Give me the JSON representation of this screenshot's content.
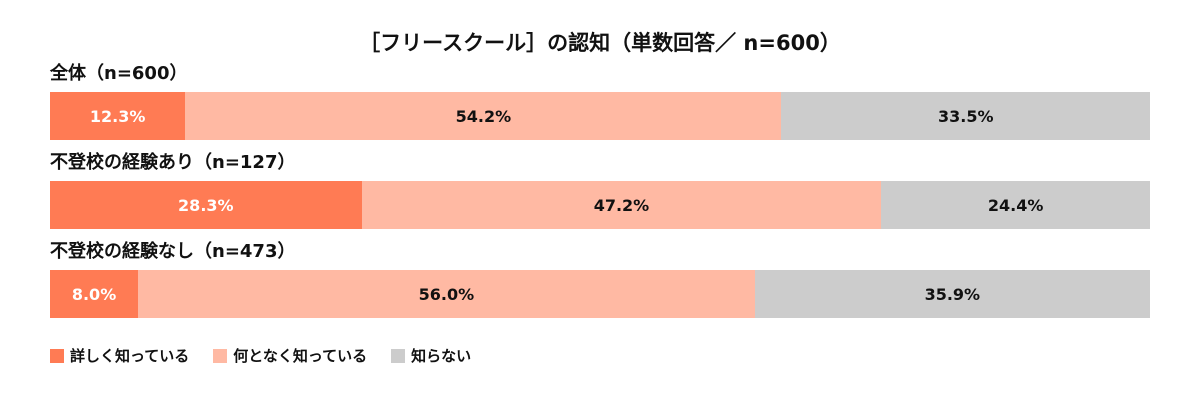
{
  "chart_data": {
    "type": "bar",
    "orientation": "horizontal",
    "stacked": true,
    "normalized": true,
    "title": "［フリースクール］の認知（単数回答／ n=600）",
    "categories": [
      "全体（n=600）",
      "不登校の経験あり（n=127）",
      "不登校の経験なし（n=473）"
    ],
    "series": [
      {
        "name": "詳しく知っている",
        "color": "#ff7b54",
        "values": [
          12.3,
          28.3,
          8.0
        ],
        "labels": [
          "12.3%",
          "28.3%",
          "8.0%"
        ]
      },
      {
        "name": "何となく知っている",
        "color": "#ffb9a3",
        "values": [
          54.2,
          47.2,
          56.0
        ],
        "labels": [
          "54.2%",
          "47.2%",
          "56.0%"
        ]
      },
      {
        "name": "知らない",
        "color": "#cccccc",
        "values": [
          33.5,
          24.4,
          35.9
        ],
        "labels": [
          "33.5%",
          "24.4%",
          "35.9%"
        ]
      }
    ],
    "legend_position": "bottom-left",
    "grid": false
  }
}
